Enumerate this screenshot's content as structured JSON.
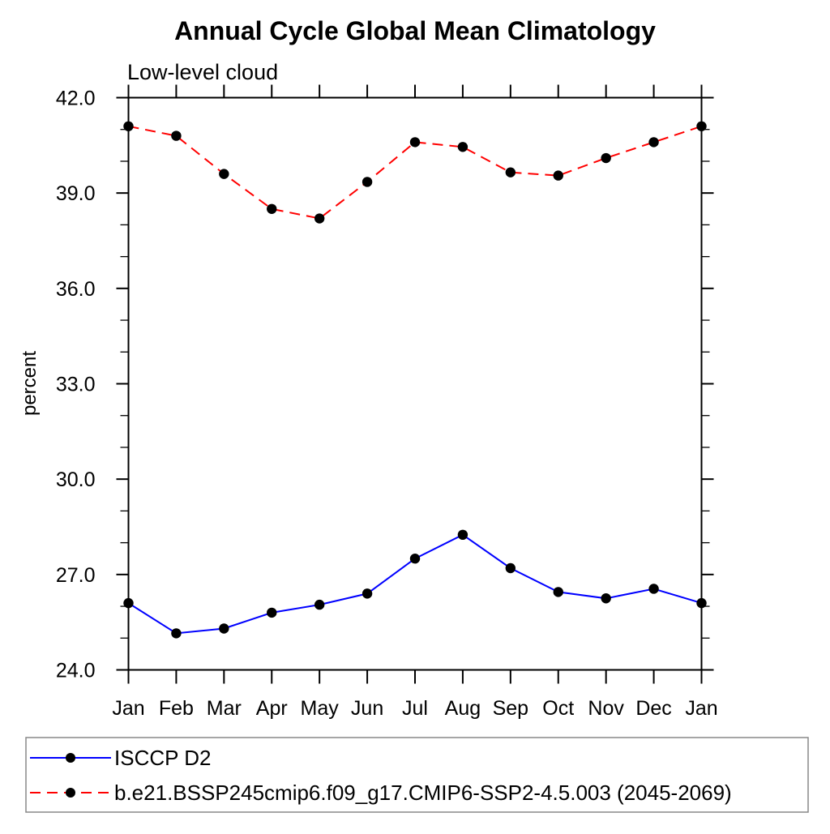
{
  "chart_data": {
    "type": "line",
    "title": "Annual Cycle Global Mean Climatology",
    "subtitle": "Low-level cloud",
    "xlabel": "",
    "ylabel": "percent",
    "ylim": [
      24.0,
      42.0
    ],
    "y_major_step": 3.0,
    "y_minor_step": 1.0,
    "y_major_tick_labels": [
      "24.0",
      "27.0",
      "30.0",
      "33.0",
      "36.0",
      "39.0",
      "42.0"
    ],
    "grid": false,
    "legend_position": "bottom",
    "categories": [
      "Jan",
      "Feb",
      "Mar",
      "Apr",
      "May",
      "Jun",
      "Jul",
      "Aug",
      "Sep",
      "Oct",
      "Nov",
      "Dec",
      "Jan"
    ],
    "series": [
      {
        "name": "ISCCP D2",
        "color": "#0000ff",
        "line_style": "solid",
        "marker": "filled-circle",
        "marker_color": "#000000",
        "values": [
          26.1,
          25.15,
          25.3,
          25.8,
          26.05,
          26.4,
          27.5,
          28.25,
          27.2,
          26.45,
          26.25,
          26.55,
          26.1
        ]
      },
      {
        "name": "b.e21.BSSP245cmip6.f09_g17.CMIP6-SSP2-4.5.003 (2045-2069)",
        "color": "#ff0000",
        "line_style": "dashed",
        "marker": "filled-circle",
        "marker_color": "#000000",
        "values": [
          41.1,
          40.8,
          39.6,
          38.5,
          38.2,
          39.35,
          40.6,
          40.45,
          39.65,
          39.55,
          40.1,
          40.6,
          41.1
        ]
      }
    ]
  }
}
